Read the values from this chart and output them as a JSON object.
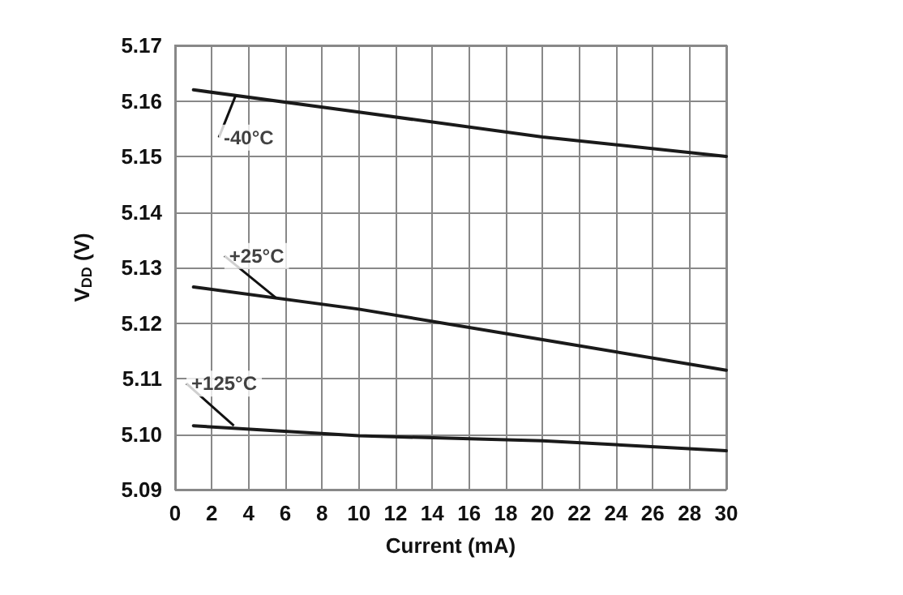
{
  "chart_data": {
    "type": "line",
    "xlabel": "Current (mA)",
    "ylabel": "V$_{DD}$ (V)",
    "xlim": [
      0,
      30
    ],
    "xticks": [
      0,
      2,
      4,
      6,
      8,
      10,
      12,
      14,
      16,
      18,
      20,
      22,
      24,
      26,
      28,
      30
    ],
    "ylim": [
      5.09,
      5.17
    ],
    "yticks": [
      5.09,
      {
        "value": 5.1,
        "label": "5.10"
      },
      5.11,
      5.12,
      5.13,
      5.14,
      5.15,
      5.16,
      5.17
    ],
    "grid": true,
    "marker": "none",
    "line_style": "solid",
    "series": [
      {
        "color": "#1a1a1a",
        "x": [
          1,
          10,
          20,
          30
        ],
        "values": [
          5.162,
          5.158,
          5.1535,
          5.15
        ]
      },
      {
        "color": "#1a1a1a",
        "x": [
          1,
          10,
          20,
          30
        ],
        "values": [
          5.1265,
          5.1225,
          5.117,
          5.1115
        ]
      },
      {
        "color": "#1a1a1a",
        "x": [
          1,
          10,
          20,
          30
        ],
        "values": [
          5.1015,
          5.0997,
          5.0988,
          5.097
        ]
      }
    ],
    "annotations": [
      {
        "text": "-40°C",
        "x": 3.3,
        "y": 5.161
      },
      {
        "text": "+25°C",
        "x": 5.5,
        "y": 5.1245
      },
      {
        "text": "+125°C",
        "x": 3.2,
        "y": 5.1015
      }
    ]
  }
}
